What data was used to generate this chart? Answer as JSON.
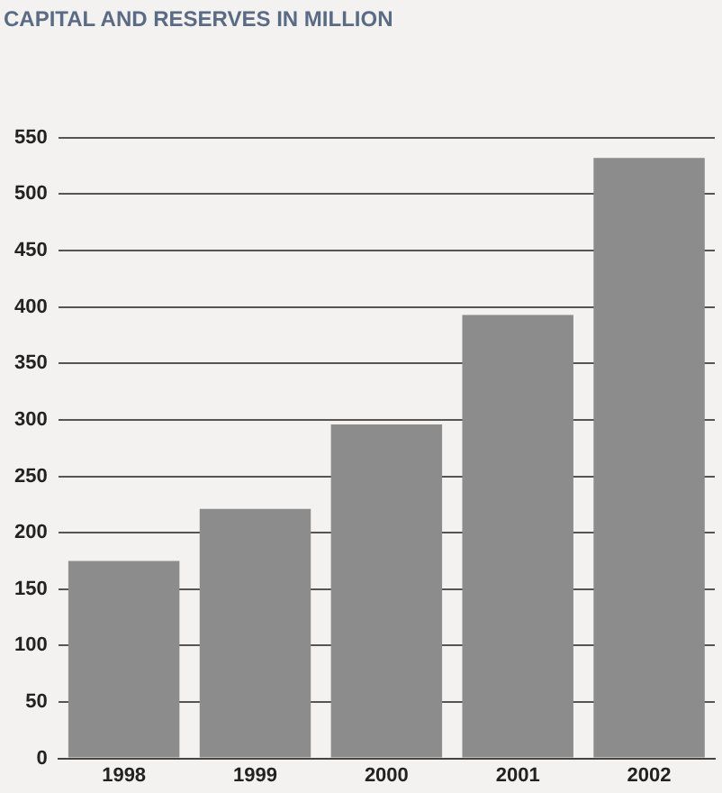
{
  "chart_data": {
    "type": "bar",
    "title": "CAPITAL AND RESERVES IN MILLION",
    "categories": [
      "1998",
      "1999",
      "2000",
      "2001",
      "2002"
    ],
    "values": [
      175,
      221,
      296,
      393,
      532
    ],
    "color": "#8c8c8c",
    "ylim": [
      0,
      550
    ],
    "yticks": [
      0,
      50,
      100,
      150,
      200,
      250,
      300,
      350,
      400,
      450,
      500,
      550
    ],
    "grid": "y",
    "legend": false
  }
}
